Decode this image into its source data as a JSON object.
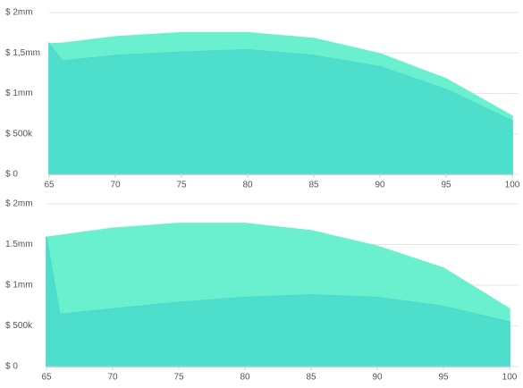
{
  "chart_data": [
    {
      "type": "area",
      "x": [
        65,
        66,
        70,
        75,
        80,
        85,
        90,
        95,
        100
      ],
      "series": [
        {
          "color": "#6af0cf",
          "values": [
            1.613,
            1.62,
            1.7,
            1.75,
            1.75,
            1.68,
            1.49,
            1.18,
            0.72
          ]
        },
        {
          "color": "#4cdccb",
          "values": [
            1.613,
            1.4,
            1.47,
            1.51,
            1.54,
            1.47,
            1.33,
            1.05,
            0.66
          ]
        }
      ],
      "xlim": [
        65,
        100
      ],
      "xticks": [
        65,
        70,
        75,
        80,
        85,
        90,
        95,
        100
      ],
      "ylim": [
        0,
        2
      ],
      "yticks": [
        {
          "value": 0,
          "label": "$ 0"
        },
        {
          "value": 0.5,
          "label": "$ 500k"
        },
        {
          "value": 1,
          "label": "$ 1mm"
        },
        {
          "value": 1.5,
          "label": "$ 1,5mm"
        },
        {
          "value": 2,
          "label": "$ 2mm"
        }
      ],
      "grid": true
    },
    {
      "type": "area",
      "x": [
        65,
        66,
        70,
        75,
        80,
        85,
        90,
        95,
        100
      ],
      "series": [
        {
          "color": "#6af0cf",
          "values": [
            1.59,
            1.61,
            1.7,
            1.76,
            1.76,
            1.67,
            1.48,
            1.21,
            0.71
          ]
        },
        {
          "color": "#4cdccb",
          "values": [
            1.59,
            0.64,
            0.71,
            0.79,
            0.85,
            0.88,
            0.85,
            0.74,
            0.55
          ]
        }
      ],
      "xlim": [
        65,
        100
      ],
      "xticks": [
        65,
        70,
        75,
        80,
        85,
        90,
        95,
        100
      ],
      "ylim": [
        0,
        2
      ],
      "yticks": [
        {
          "value": 0,
          "label": "$ 0"
        },
        {
          "value": 0.5,
          "label": "$ 500k"
        },
        {
          "value": 1,
          "label": "$ 1mm"
        },
        {
          "value": 1.5,
          "label": "1.5mm"
        },
        {
          "value": 2,
          "label": "$ 2mm"
        }
      ],
      "grid": true
    }
  ]
}
